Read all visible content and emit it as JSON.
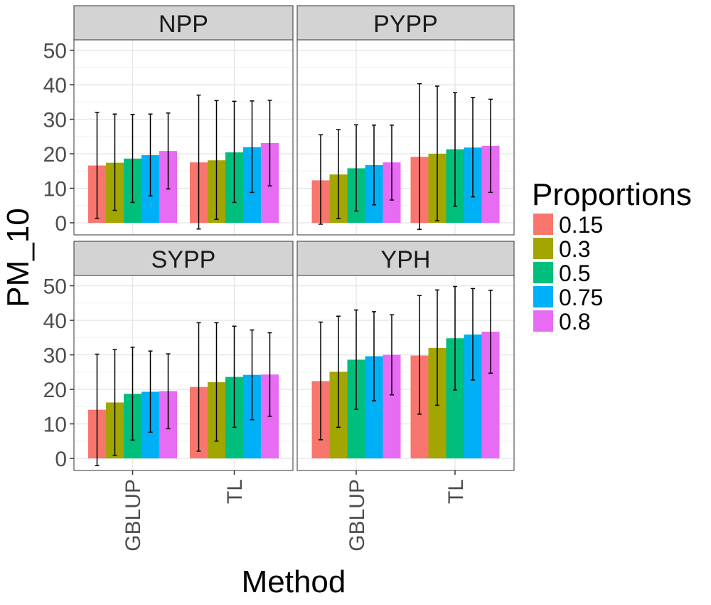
{
  "chart_data": {
    "type": "bar",
    "title": "",
    "xlabel": "Method",
    "ylabel": "PM_10",
    "ylim": [
      -3.5,
      53
    ],
    "yticks": [
      0,
      10,
      20,
      30,
      40,
      50
    ],
    "categories": [
      "GBLUP",
      "TL"
    ],
    "legend": {
      "title": "Proportions",
      "position": "right",
      "entries": [
        "0.15",
        "0.3",
        "0.5",
        "0.75",
        "0.8"
      ],
      "colors": [
        "#F8766D",
        "#A3A500",
        "#00BF7D",
        "#00B0F6",
        "#E76BF3"
      ]
    },
    "panels": [
      {
        "label": "NPP",
        "values": {
          "GBLUP": [
            16.6,
            17.4,
            18.6,
            19.6,
            20.8
          ],
          "TL": [
            17.5,
            18.1,
            20.4,
            21.9,
            23.1
          ]
        },
        "errors": {
          "GBLUP": [
            [
              1.3,
              32.0
            ],
            [
              3.6,
              31.5
            ],
            [
              5.9,
              31.4
            ],
            [
              7.8,
              31.5
            ],
            [
              9.8,
              31.8
            ]
          ],
          "TL": [
            [
              -1.8,
              37.0
            ],
            [
              1.0,
              35.4
            ],
            [
              5.9,
              35.2
            ],
            [
              8.8,
              35.3
            ],
            [
              10.7,
              35.5
            ]
          ]
        }
      },
      {
        "label": "PYPP",
        "values": {
          "GBLUP": [
            12.3,
            14.0,
            15.8,
            16.7,
            17.5
          ],
          "TL": [
            19.1,
            20.0,
            21.3,
            21.8,
            22.3
          ]
        },
        "errors": {
          "GBLUP": [
            [
              -0.4,
              25.5
            ],
            [
              1.2,
              27.0
            ],
            [
              3.4,
              28.4
            ],
            [
              5.2,
              28.3
            ],
            [
              6.6,
              28.3
            ]
          ],
          "TL": [
            [
              -1.9,
              40.3
            ],
            [
              0.6,
              39.6
            ],
            [
              4.8,
              37.7
            ],
            [
              7.5,
              36.3
            ],
            [
              8.8,
              35.8
            ]
          ]
        }
      },
      {
        "label": "SYPP",
        "values": {
          "GBLUP": [
            14.1,
            16.2,
            18.7,
            19.3,
            19.5
          ],
          "TL": [
            20.7,
            22.1,
            23.6,
            24.2,
            24.3
          ]
        },
        "errors": {
          "GBLUP": [
            [
              -2.1,
              30.2
            ],
            [
              0.9,
              31.5
            ],
            [
              5.3,
              32.2
            ],
            [
              7.6,
              31.1
            ],
            [
              8.6,
              30.3
            ]
          ],
          "TL": [
            [
              2.1,
              39.3
            ],
            [
              5.0,
              39.3
            ],
            [
              9.0,
              38.3
            ],
            [
              11.2,
              37.2
            ],
            [
              12.2,
              36.4
            ]
          ]
        }
      },
      {
        "label": "YPH",
        "values": {
          "GBLUP": [
            22.4,
            25.1,
            28.6,
            29.6,
            30.0
          ],
          "TL": [
            29.8,
            32.0,
            34.8,
            35.9,
            36.7
          ]
        },
        "errors": {
          "GBLUP": [
            [
              5.4,
              39.5
            ],
            [
              9.0,
              41.2
            ],
            [
              14.2,
              43.0
            ],
            [
              16.7,
              42.5
            ],
            [
              18.4,
              41.6
            ]
          ],
          "TL": [
            [
              12.8,
              47.2
            ],
            [
              15.4,
              48.8
            ],
            [
              19.8,
              49.8
            ],
            [
              22.7,
              49.2
            ],
            [
              24.7,
              48.7
            ]
          ]
        }
      }
    ]
  }
}
